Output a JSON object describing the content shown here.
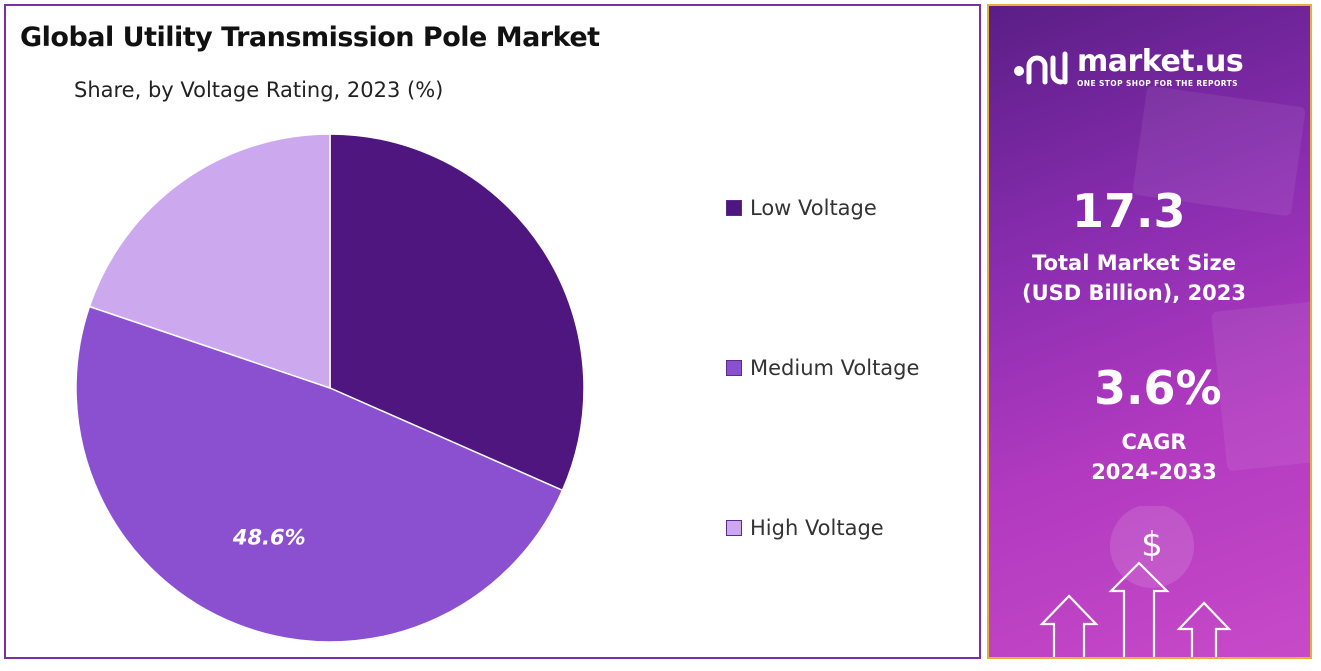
{
  "chart_data": {
    "type": "pie",
    "title": "Global Utility Transmission Pole Market",
    "subtitle": "Share, by Voltage Rating, 2023 (%)",
    "categories": [
      "Low Voltage",
      "Medium Voltage",
      "High Voltage"
    ],
    "values": [
      31.6,
      48.6,
      19.8
    ],
    "colors": [
      "#4f167f",
      "#8b50d0",
      "#cca8ee"
    ],
    "data_labels": [
      "",
      "48.6%",
      ""
    ],
    "start_angle_deg": 0,
    "direction": "clockwise",
    "legend_position": "right"
  },
  "sidebar": {
    "brand": {
      "name": "market.us",
      "tagline": "ONE STOP SHOP FOR THE REPORTS",
      "icon": "market-us-logo-icon"
    },
    "market_size": {
      "value": "17.3",
      "label_line1": "Total Market Size",
      "label_line2": "(USD Billion), 2023"
    },
    "cagr": {
      "value": "3.6%",
      "label_line1": "CAGR",
      "label_line2": "2024-2033"
    },
    "graphic_symbol": "$",
    "colors": {
      "gradient_start": "#5a1e86",
      "gradient_end": "#c74ac8",
      "border": "#e3b03c"
    }
  }
}
